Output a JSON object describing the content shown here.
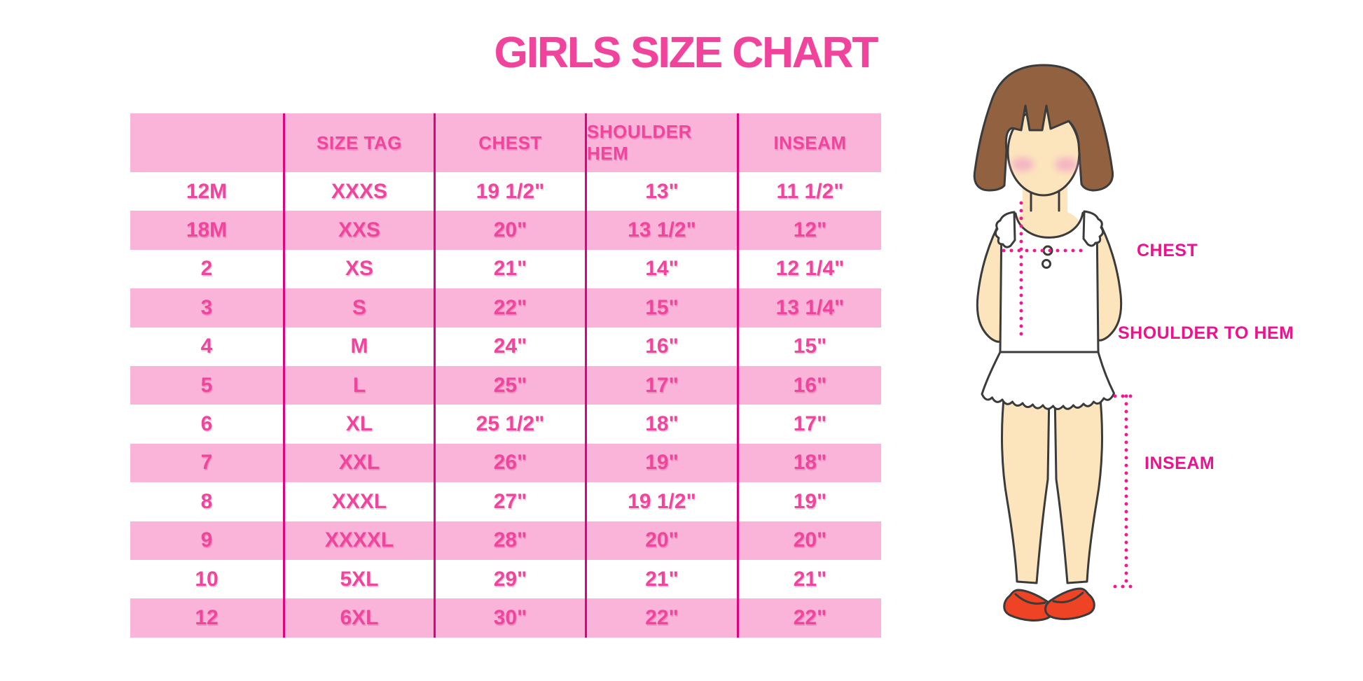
{
  "title": "GIRLS SIZE CHART",
  "table": {
    "columns": [
      "",
      "SIZE TAG",
      "CHEST",
      "SHOULDER HEM",
      "INSEAM"
    ],
    "rows": [
      [
        "12M",
        "XXXS",
        "19 1/2\"",
        "13\"",
        "11 1/2\""
      ],
      [
        "18M",
        "XXS",
        "20\"",
        "13 1/2\"",
        "12\""
      ],
      [
        "2",
        "XS",
        "21\"",
        "14\"",
        "12 1/4\""
      ],
      [
        "3",
        "S",
        "22\"",
        "15\"",
        "13 1/4\""
      ],
      [
        "4",
        "M",
        "24\"",
        "16\"",
        "15\""
      ],
      [
        "5",
        "L",
        "25\"",
        "17\"",
        "16\""
      ],
      [
        "6",
        "XL",
        "25 1/2\"",
        "18\"",
        "17\""
      ],
      [
        "7",
        "XXL",
        "26\"",
        "19\"",
        "18\""
      ],
      [
        "8",
        "XXXL",
        "27\"",
        "19 1/2\"",
        "19\""
      ],
      [
        "9",
        "XXXXL",
        "28\"",
        "20\"",
        "20\""
      ],
      [
        "10",
        "5XL",
        "29\"",
        "21\"",
        "21\""
      ],
      [
        "12",
        "6XL",
        "30\"",
        "22\"",
        "22\""
      ]
    ]
  },
  "diagram": {
    "labels": {
      "chest": "CHEST",
      "shoulder_to_hem": "SHOULDER TO HEM",
      "inseam": "INSEAM"
    }
  },
  "colors": {
    "title": "#f0449c",
    "row_pink": "#fab3d9",
    "cell_text": "#f0459c",
    "divider": "#e0017f",
    "label_text": "#ed128d",
    "dotted_line": "#ef1a90",
    "hair_brown": "#916140",
    "skin": "#fce5bc",
    "shoe_red": "#ee4324"
  }
}
